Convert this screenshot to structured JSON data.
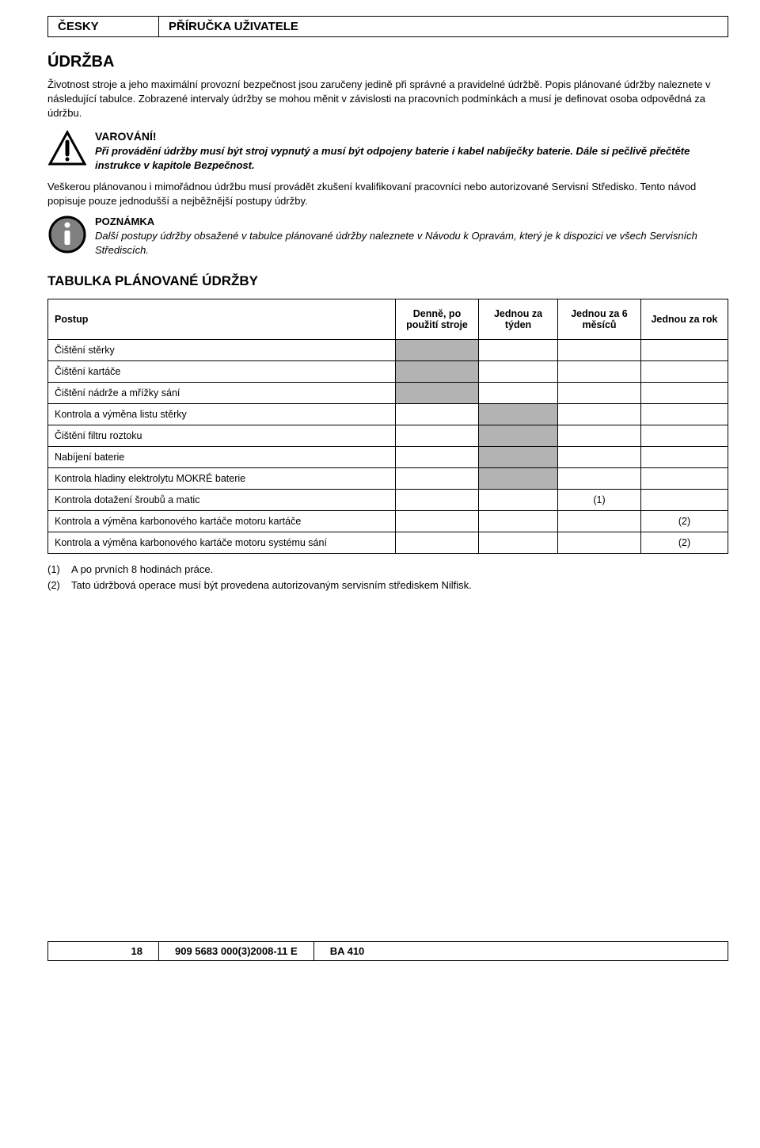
{
  "header": {
    "lang": "ČESKY",
    "doctype": "PŘÍRUČKA UŽIVATELE"
  },
  "section_title": "ÚDRŽBA",
  "intro": "Životnost stroje a jeho maximální provozní bezpečnost jsou zaručeny jedině při správné a pravidelné údržbě. Popis plánované údržby naleznete v následující tabulce. Zobrazené intervaly údržby se mohou měnit v závislosti na pracovních podmínkách a musí je definovat osoba odpovědná za údržbu.",
  "warning": {
    "title": "VAROVÁNÍ!",
    "body": "Při provádění údržby musí být stroj vypnutý a musí být odpojeny baterie i kabel nabíječky baterie. Dále si pečlivě přečtěte instrukce v kapitole Bezpečnost."
  },
  "para1": "Veškerou plánovanou i mimořádnou údržbu musí provádět zkušení kvalifikovaní pracovníci nebo autorizované Servisní Středisko. Tento návod popisuje pouze jednodušší a nejběžnější postupy údržby.",
  "note": {
    "title": "POZNÁMKA",
    "body": "Další postupy údržby obsažené v tabulce plánované údržby naleznete v Návodu k Opravám, který je k dispozici ve všech Servisních Střediscích."
  },
  "table_heading": "TABULKA PLÁNOVANÉ ÚDRŽBY",
  "table": {
    "headers": [
      "Postup",
      "Denně, po použití stroje",
      "Jednou za týden",
      "Jednou za 6 měsíců",
      "Jednou za rok"
    ],
    "rows": [
      {
        "proc": "Čištění stěrky",
        "daily": "shaded",
        "weekly": "",
        "sixmo": "",
        "yearly": ""
      },
      {
        "proc": "Čištění kartáče",
        "daily": "shaded",
        "weekly": "",
        "sixmo": "",
        "yearly": ""
      },
      {
        "proc": "Čištění nádrže a mřížky sání",
        "daily": "shaded",
        "weekly": "",
        "sixmo": "",
        "yearly": ""
      },
      {
        "proc": "Kontrola a výměna listu stěrky",
        "daily": "",
        "weekly": "shaded",
        "sixmo": "",
        "yearly": ""
      },
      {
        "proc": "Čištění filtru roztoku",
        "daily": "",
        "weekly": "shaded",
        "sixmo": "",
        "yearly": ""
      },
      {
        "proc": "Nabíjení baterie",
        "daily": "",
        "weekly": "shaded",
        "sixmo": "",
        "yearly": ""
      },
      {
        "proc": "Kontrola hladiny elektrolytu MOKRÉ baterie",
        "daily": "",
        "weekly": "shaded",
        "sixmo": "",
        "yearly": ""
      },
      {
        "proc": "Kontrola dotažení šroubů a matic",
        "daily": "",
        "weekly": "",
        "sixmo": "(1)",
        "yearly": ""
      },
      {
        "proc": "Kontrola a výměna karbonového kartáče motoru kartáče",
        "daily": "",
        "weekly": "",
        "sixmo": "",
        "yearly": "(2)"
      },
      {
        "proc": "Kontrola a výměna karbonového kartáče motoru systému sání",
        "daily": "",
        "weekly": "",
        "sixmo": "",
        "yearly": "(2)"
      }
    ]
  },
  "footnotes": [
    {
      "num": "(1)",
      "text": "A po prvních 8 hodinách práce."
    },
    {
      "num": "(2)",
      "text": "Tato údržbová operace musí být provedena autorizovaným servisním střediskem Nilfisk."
    }
  ],
  "footer": {
    "page": "18",
    "docnum": "909 5683 000(3)2008-11 E",
    "model": "BA 410"
  },
  "colors": {
    "shaded": "#b3b3b3",
    "info_fill": "#808080",
    "text": "#000000",
    "background": "#ffffff"
  }
}
